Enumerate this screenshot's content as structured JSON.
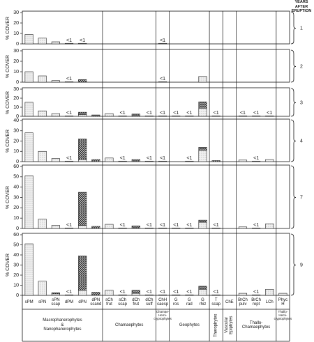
{
  "header": "YEARS AFTER\nERUPTION",
  "groups": [
    {
      "label": "Macrophanerophytes\n&\nNanophanerophytes",
      "categories": [
        "sPM",
        "sPN",
        "sPN\nscap",
        "dPM",
        "dPN",
        "dPN\nscand"
      ]
    },
    {
      "label": "Chamaephytes",
      "categories": [
        "sCh\nfrut",
        "sCh\nscap",
        "dCh\nfrut",
        "dCh\nsuff"
      ]
    },
    {
      "label": "Chamae-Hemi-\ncryptophytes",
      "categories": [
        "ChH\ncaesp"
      ]
    },
    {
      "label": "Geophytes",
      "categories": [
        "G\nros",
        "G\nrad",
        "G\nrhiz"
      ]
    },
    {
      "label": "Therophytes",
      "vertical": true,
      "categories": [
        "T\nscap"
      ]
    },
    {
      "label": "Vascular\nEpiphytes",
      "vertical": true,
      "categories": [
        "ChE"
      ]
    },
    {
      "label": "Thallo-\nChamaephytes",
      "categories": [
        "BrCh\npulv",
        "BrCh\nrept",
        "LCh"
      ]
    },
    {
      "label": "Thallo-Hemi-\ncryptophytes",
      "categories": [
        "Phyc\nH"
      ]
    }
  ],
  "chart_data": [
    {
      "type": "bar",
      "stacked": true,
      "year": "1",
      "ylabel": "% COVER",
      "ylim": [
        0,
        30
      ],
      "yticks": [
        0,
        10,
        20,
        30
      ],
      "series": [
        {
          "pattern": "stipple",
          "values": [
            9,
            5.5,
            2,
            0.5,
            0.5,
            null,
            null,
            null,
            null,
            null,
            0.5,
            null,
            null,
            null,
            null,
            null,
            null,
            null,
            null,
            null
          ],
          "value_labels": [
            null,
            null,
            null,
            "<1",
            "<1",
            null,
            null,
            null,
            null,
            null,
            "<1",
            null,
            null,
            null,
            null,
            null,
            null,
            null,
            null,
            null
          ]
        },
        {
          "pattern": "crosshatch",
          "values": [
            null,
            null,
            null,
            null,
            null,
            null,
            null,
            null,
            null,
            null,
            null,
            null,
            null,
            null,
            null,
            null,
            null,
            null,
            null,
            null
          ]
        }
      ]
    },
    {
      "type": "bar",
      "stacked": true,
      "year": "2",
      "ylabel": "% COVER",
      "ylim": [
        0,
        30
      ],
      "yticks": [
        0,
        10,
        20,
        30
      ],
      "series": [
        {
          "pattern": "stipple",
          "values": [
            10,
            6,
            1.5,
            0.5,
            null,
            null,
            null,
            null,
            null,
            null,
            0.5,
            null,
            null,
            5.5,
            null,
            null,
            null,
            null,
            null,
            null
          ],
          "value_labels": [
            null,
            null,
            null,
            "<1",
            null,
            null,
            null,
            null,
            null,
            null,
            "<1",
            null,
            null,
            null,
            null,
            null,
            null,
            null,
            null,
            null
          ]
        },
        {
          "pattern": "crosshatch",
          "values": [
            null,
            null,
            null,
            null,
            2.5,
            null,
            null,
            null,
            null,
            null,
            null,
            null,
            null,
            null,
            null,
            null,
            null,
            null,
            null,
            null
          ]
        }
      ]
    },
    {
      "type": "bar",
      "stacked": true,
      "year": "3",
      "ylabel": "% COVER",
      "ylim": [
        0,
        30
      ],
      "yticks": [
        0,
        10,
        20,
        30
      ],
      "series": [
        {
          "pattern": "stipple",
          "values": [
            15.5,
            6,
            3,
            0.5,
            2,
            null,
            3,
            0.5,
            null,
            0.5,
            0.5,
            0.5,
            0.5,
            9,
            0.5,
            null,
            0.5,
            0.5,
            0.5,
            null
          ],
          "value_labels": [
            null,
            null,
            null,
            "<1",
            null,
            null,
            null,
            "<1",
            null,
            "<1",
            "<1",
            "<1",
            "<1",
            null,
            "<1",
            null,
            "<1",
            "<1",
            "<1",
            null
          ]
        },
        {
          "pattern": "crosshatch",
          "values": [
            null,
            null,
            null,
            null,
            2.5,
            1.5,
            null,
            null,
            2.5,
            null,
            null,
            null,
            null,
            7,
            null,
            null,
            null,
            null,
            null,
            null
          ]
        }
      ]
    },
    {
      "type": "bar",
      "stacked": true,
      "year": "4",
      "ylabel": "% COVER",
      "ylim": [
        0,
        40
      ],
      "yticks": [
        0,
        10,
        20,
        30,
        40
      ],
      "series": [
        {
          "pattern": "stipple",
          "values": [
            28,
            10,
            3,
            0.5,
            2,
            null,
            3.5,
            0.5,
            null,
            0.5,
            0.5,
            null,
            0.5,
            11,
            null,
            null,
            1.5,
            0.5,
            2,
            null
          ],
          "value_labels": [
            null,
            null,
            null,
            "<1",
            null,
            null,
            null,
            "<1",
            null,
            "<1",
            "<1",
            null,
            "<1",
            null,
            null,
            null,
            null,
            "<1",
            null,
            null
          ]
        },
        {
          "pattern": "crosshatch",
          "values": [
            null,
            null,
            null,
            null,
            20,
            2,
            null,
            null,
            2,
            null,
            null,
            null,
            null,
            3,
            1,
            null,
            null,
            null,
            null,
            null
          ]
        }
      ]
    },
    {
      "type": "bar",
      "stacked": true,
      "year": "7",
      "ylabel": "% COVER",
      "ylim": [
        0,
        60
      ],
      "yticks": [
        0,
        10,
        20,
        30,
        40,
        50,
        60
      ],
      "series": [
        {
          "pattern": "stipple",
          "values": [
            51,
            9,
            3,
            0.5,
            3,
            null,
            4,
            0.5,
            null,
            0.5,
            0.5,
            0.5,
            0.5,
            6,
            0.5,
            null,
            1.5,
            0.5,
            4.5,
            null
          ],
          "value_labels": [
            null,
            null,
            null,
            "<1",
            null,
            null,
            null,
            "<1",
            null,
            "<1",
            "<1",
            "<1",
            "<1",
            null,
            "<1",
            null,
            null,
            "<1",
            null,
            null
          ]
        },
        {
          "pattern": "crosshatch",
          "values": [
            null,
            null,
            null,
            null,
            32,
            2,
            null,
            null,
            2.5,
            null,
            null,
            null,
            null,
            2,
            null,
            null,
            null,
            null,
            null,
            null
          ]
        }
      ]
    },
    {
      "type": "bar",
      "stacked": true,
      "year": "9",
      "ylabel": "% COVER",
      "ylim": [
        0,
        60
      ],
      "yticks": [
        0,
        10,
        20,
        30,
        40,
        50,
        60
      ],
      "series": [
        {
          "pattern": "stipple",
          "values": [
            51,
            14,
            1.5,
            0.5,
            5,
            null,
            5,
            0.5,
            2,
            0.5,
            0.5,
            0.5,
            0.5,
            6,
            0.5,
            null,
            2,
            0.5,
            6,
            2
          ],
          "value_labels": [
            null,
            null,
            null,
            "<1",
            null,
            null,
            null,
            "<1",
            null,
            "<1",
            "<1",
            "<1",
            "<1",
            null,
            "<1",
            null,
            null,
            "<1",
            null,
            null
          ]
        },
        {
          "pattern": "crosshatch",
          "values": [
            null,
            null,
            1,
            null,
            34,
            3,
            null,
            null,
            3,
            null,
            null,
            null,
            null,
            3,
            null,
            null,
            null,
            null,
            null,
            null
          ]
        }
      ]
    }
  ]
}
